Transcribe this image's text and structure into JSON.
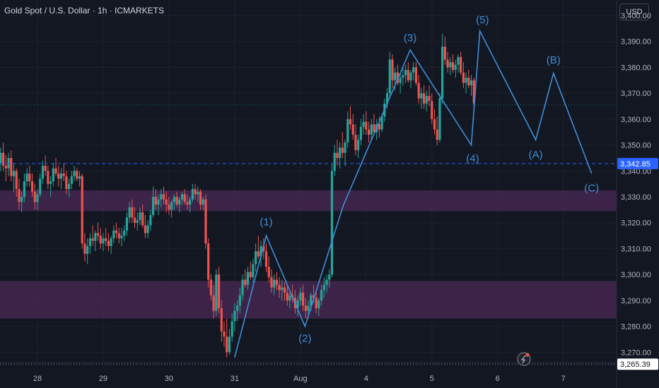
{
  "header": {
    "title": "Gold Spot / U.S. Dollar · 1h · ICMARKETS",
    "currency": "USD"
  },
  "colors": {
    "bg": "#131722",
    "up": "#26a69a",
    "down": "#ef5350",
    "wave": "#3f8ed8",
    "zone": "#4a2a55",
    "price_line": "#2962ff",
    "last_price_bg": "#2962ff",
    "current_bg": "#ffffff"
  },
  "chart_data": {
    "type": "candlestick",
    "title": "Gold Spot / U.S. Dollar · 1h · ICMARKETS",
    "x_tick_labels": [
      "28",
      "29",
      "30",
      "31",
      "Aug",
      "4",
      "5",
      "6",
      "7"
    ],
    "x_tick_positions": [
      0,
      1,
      2,
      3,
      4,
      5,
      6,
      7,
      8
    ],
    "y_ticks": [
      3270,
      3280,
      3290,
      3300,
      3310,
      3320,
      3330,
      3340,
      3350,
      3360,
      3370,
      3380,
      3390,
      3400
    ],
    "y_tick_labels": [
      "3,270.00",
      "3,280.00",
      "3,290.00",
      "3,300.00",
      "3,310.00",
      "3,320.00",
      "3,330.00",
      "3,340.00",
      "3,350.00",
      "3,360.00",
      "3,370.00",
      "3,380.00",
      "3,390.00",
      "3,400.00"
    ],
    "ylim": [
      3266,
      3406
    ],
    "xlim": [
      -0.57,
      8.81
    ],
    "grid": true,
    "price_lines": [
      {
        "value": 3342.85,
        "label": "3,342.85",
        "style": "dashed"
      },
      {
        "value": 3365.5,
        "style": "dotted"
      },
      {
        "value": 3265.39,
        "label": "3,265.39",
        "style": "dotted"
      }
    ],
    "zones": [
      {
        "from": 3324.5,
        "to": 3332.5
      },
      {
        "from": 3283,
        "to": 3297.5
      }
    ],
    "wave": {
      "points": [
        [
          3.0,
          3268
        ],
        [
          3.48,
          3315
        ],
        [
          4.07,
          3280
        ],
        [
          4.65,
          3326.5
        ],
        [
          5.67,
          3386.7
        ],
        [
          6.6,
          3350
        ],
        [
          6.73,
          3394
        ],
        [
          7.58,
          3352
        ],
        [
          7.85,
          3377.7
        ],
        [
          8.43,
          3339
        ]
      ],
      "labels": [
        {
          "text": "(1)",
          "x": 3.48,
          "y": 3319
        },
        {
          "text": "(2)",
          "x": 4.07,
          "y": 3274
        },
        {
          "text": "(3)",
          "x": 5.67,
          "y": 3390
        },
        {
          "text": "(4)",
          "x": 6.62,
          "y": 3343.5
        },
        {
          "text": "(5)",
          "x": 6.77,
          "y": 3397
        },
        {
          "text": "(A)",
          "x": 7.58,
          "y": 3345
        },
        {
          "text": "(B)",
          "x": 7.85,
          "y": 3381.5
        },
        {
          "text": "(C)",
          "x": 8.43,
          "y": 3332
        }
      ]
    },
    "ohlc": [
      [
        -0.56,
        3343,
        3349,
        3340,
        3347
      ],
      [
        -0.52,
        3347,
        3351,
        3340,
        3342
      ],
      [
        -0.48,
        3342,
        3346,
        3336,
        3341
      ],
      [
        -0.44,
        3341,
        3347,
        3338,
        3345
      ],
      [
        -0.4,
        3345,
        3348,
        3336,
        3338
      ],
      [
        -0.36,
        3338,
        3343,
        3332,
        3340
      ],
      [
        -0.32,
        3340,
        3341,
        3330,
        3333
      ],
      [
        -0.28,
        3333,
        3337,
        3325,
        3328
      ],
      [
        -0.24,
        3328,
        3332,
        3324,
        3330
      ],
      [
        -0.2,
        3330,
        3339,
        3328,
        3336
      ],
      [
        -0.16,
        3336,
        3341,
        3334,
        3339
      ],
      [
        -0.12,
        3339,
        3342,
        3334,
        3336
      ],
      [
        -0.08,
        3336,
        3339,
        3330,
        3332
      ],
      [
        -0.04,
        3332,
        3335,
        3325,
        3328
      ],
      [
        0.0,
        3328,
        3333,
        3325,
        3331
      ],
      [
        0.04,
        3331,
        3339,
        3330,
        3337
      ],
      [
        0.08,
        3337,
        3344,
        3335,
        3342
      ],
      [
        0.12,
        3342,
        3346,
        3338,
        3340
      ],
      [
        0.16,
        3340,
        3342,
        3333,
        3335
      ],
      [
        0.2,
        3335,
        3338,
        3330,
        3336
      ],
      [
        0.24,
        3336,
        3343,
        3334,
        3341
      ],
      [
        0.28,
        3341,
        3345,
        3338,
        3339
      ],
      [
        0.32,
        3339,
        3342,
        3334,
        3337
      ],
      [
        0.36,
        3337,
        3341,
        3333,
        3339
      ],
      [
        0.4,
        3339,
        3343,
        3336,
        3338
      ],
      [
        0.44,
        3338,
        3340,
        3331,
        3333
      ],
      [
        0.48,
        3333,
        3337,
        3330,
        3335
      ],
      [
        0.52,
        3335,
        3340,
        3333,
        3338
      ],
      [
        0.56,
        3338,
        3342,
        3336,
        3340
      ],
      [
        0.6,
        3340,
        3341,
        3336,
        3337
      ],
      [
        0.64,
        3337,
        3340,
        3334,
        3338
      ],
      [
        0.68,
        3338,
        3339,
        3310,
        3312
      ],
      [
        0.72,
        3312,
        3316,
        3305,
        3308
      ],
      [
        0.76,
        3308,
        3314,
        3304,
        3311
      ],
      [
        0.8,
        3311,
        3316,
        3308,
        3314
      ],
      [
        0.84,
        3314,
        3319,
        3311,
        3313
      ],
      [
        0.88,
        3313,
        3317,
        3309,
        3316
      ],
      [
        0.92,
        3316,
        3320,
        3313,
        3315
      ],
      [
        0.96,
        3315,
        3318,
        3310,
        3312
      ],
      [
        1.0,
        3312,
        3316,
        3309,
        3314
      ],
      [
        1.04,
        3314,
        3318,
        3311,
        3313
      ],
      [
        1.08,
        3313,
        3316,
        3309,
        3311
      ],
      [
        1.12,
        3311,
        3315,
        3308,
        3314
      ],
      [
        1.16,
        3314,
        3319,
        3312,
        3317
      ],
      [
        1.2,
        3317,
        3320,
        3314,
        3316
      ],
      [
        1.24,
        3316,
        3318,
        3312,
        3314
      ],
      [
        1.28,
        3314,
        3318,
        3311,
        3315
      ],
      [
        1.32,
        3315,
        3319,
        3313,
        3317
      ],
      [
        1.36,
        3317,
        3324,
        3315,
        3322
      ],
      [
        1.4,
        3322,
        3328,
        3320,
        3326
      ],
      [
        1.44,
        3326,
        3329,
        3320,
        3322
      ],
      [
        1.48,
        3322,
        3326,
        3318,
        3320
      ],
      [
        1.52,
        3320,
        3324,
        3317,
        3321
      ],
      [
        1.56,
        3321,
        3326,
        3319,
        3324
      ],
      [
        1.6,
        3324,
        3327,
        3318,
        3319
      ],
      [
        1.64,
        3319,
        3323,
        3314,
        3316
      ],
      [
        1.68,
        3316,
        3321,
        3314,
        3319
      ],
      [
        1.72,
        3319,
        3325,
        3317,
        3323
      ],
      [
        1.76,
        3323,
        3334,
        3322,
        3330
      ],
      [
        1.8,
        3330,
        3333,
        3325,
        3327
      ],
      [
        1.84,
        3327,
        3331,
        3323,
        3329
      ],
      [
        1.88,
        3329,
        3333,
        3326,
        3331
      ],
      [
        1.92,
        3331,
        3334,
        3327,
        3329
      ],
      [
        1.96,
        3329,
        3332,
        3324,
        3327
      ],
      [
        2.0,
        3327,
        3330,
        3323,
        3325
      ],
      [
        2.04,
        3325,
        3329,
        3322,
        3328
      ],
      [
        2.08,
        3328,
        3331,
        3325,
        3330
      ],
      [
        2.12,
        3330,
        3332,
        3326,
        3327
      ],
      [
        2.16,
        3327,
        3330,
        3324,
        3329
      ],
      [
        2.2,
        3329,
        3332,
        3327,
        3331
      ],
      [
        2.24,
        3331,
        3333,
        3327,
        3328
      ],
      [
        2.28,
        3328,
        3331,
        3325,
        3327
      ],
      [
        2.32,
        3327,
        3330,
        3324,
        3329
      ],
      [
        2.36,
        3329,
        3335,
        3328,
        3333
      ],
      [
        2.4,
        3333,
        3335,
        3329,
        3331
      ],
      [
        2.44,
        3331,
        3334,
        3328,
        3332
      ],
      [
        2.48,
        3332,
        3333,
        3325,
        3327
      ],
      [
        2.52,
        3327,
        3330,
        3325,
        3329
      ],
      [
        2.56,
        3329,
        3331,
        3310,
        3312
      ],
      [
        2.6,
        3312,
        3314,
        3295,
        3298
      ],
      [
        2.64,
        3298,
        3300,
        3290,
        3292
      ],
      [
        2.68,
        3292,
        3296,
        3283,
        3286
      ],
      [
        2.72,
        3286,
        3302,
        3284,
        3300
      ],
      [
        2.76,
        3300,
        3303,
        3285,
        3287
      ],
      [
        2.8,
        3287,
        3290,
        3274,
        3278
      ],
      [
        2.84,
        3278,
        3282,
        3272,
        3276
      ],
      [
        2.88,
        3276,
        3283,
        3268,
        3270
      ],
      [
        2.92,
        3270,
        3279,
        3269,
        3276
      ],
      [
        2.96,
        3276,
        3285,
        3274,
        3282
      ],
      [
        3.0,
        3282,
        3289,
        3278,
        3286
      ],
      [
        3.04,
        3286,
        3290,
        3282,
        3288
      ],
      [
        3.08,
        3288,
        3295,
        3285,
        3292
      ],
      [
        3.12,
        3292,
        3300,
        3290,
        3298
      ],
      [
        3.16,
        3298,
        3302,
        3295,
        3296
      ],
      [
        3.2,
        3296,
        3303,
        3294,
        3301
      ],
      [
        3.24,
        3301,
        3305,
        3298,
        3299
      ],
      [
        3.28,
        3299,
        3306,
        3297,
        3304
      ],
      [
        3.32,
        3304,
        3312,
        3301,
        3309
      ],
      [
        3.36,
        3309,
        3315,
        3306,
        3307
      ],
      [
        3.4,
        3307,
        3313,
        3303,
        3311
      ],
      [
        3.44,
        3311,
        3314,
        3306,
        3309
      ],
      [
        3.48,
        3309,
        3312,
        3301,
        3303
      ],
      [
        3.52,
        3303,
        3307,
        3297,
        3299
      ],
      [
        3.56,
        3299,
        3302,
        3293,
        3295
      ],
      [
        3.6,
        3295,
        3300,
        3292,
        3298
      ],
      [
        3.64,
        3298,
        3301,
        3294,
        3296
      ],
      [
        3.68,
        3296,
        3299,
        3291,
        3294
      ],
      [
        3.72,
        3294,
        3298,
        3290,
        3295
      ],
      [
        3.76,
        3295,
        3297,
        3290,
        3293
      ],
      [
        3.8,
        3293,
        3296,
        3288,
        3290
      ],
      [
        3.84,
        3290,
        3294,
        3287,
        3292
      ],
      [
        3.88,
        3292,
        3296,
        3289,
        3291
      ],
      [
        3.92,
        3291,
        3294,
        3285,
        3287
      ],
      [
        3.96,
        3287,
        3292,
        3284,
        3290
      ],
      [
        4.0,
        3290,
        3295,
        3288,
        3293
      ],
      [
        4.04,
        3293,
        3296,
        3286,
        3288
      ],
      [
        4.08,
        3288,
        3291,
        3283,
        3286
      ],
      [
        4.12,
        3286,
        3290,
        3283,
        3288
      ],
      [
        4.16,
        3288,
        3293,
        3286,
        3292
      ],
      [
        4.2,
        3292,
        3296,
        3289,
        3291
      ],
      [
        4.24,
        3291,
        3294,
        3285,
        3287
      ],
      [
        4.28,
        3287,
        3291,
        3284,
        3290
      ],
      [
        4.32,
        3290,
        3296,
        3288,
        3294
      ],
      [
        4.36,
        3294,
        3299,
        3291,
        3296
      ],
      [
        4.4,
        3296,
        3300,
        3293,
        3298
      ],
      [
        4.44,
        3298,
        3302,
        3295,
        3300
      ],
      [
        4.48,
        3300,
        3343,
        3299,
        3340
      ],
      [
        4.52,
        3340,
        3350,
        3338,
        3347
      ],
      [
        4.56,
        3347,
        3352,
        3342,
        3345
      ],
      [
        4.6,
        3345,
        3351,
        3341,
        3349
      ],
      [
        4.64,
        3349,
        3355,
        3345,
        3347
      ],
      [
        4.68,
        3347,
        3352,
        3342,
        3351
      ],
      [
        4.72,
        3351,
        3363,
        3349,
        3360
      ],
      [
        4.76,
        3360,
        3365,
        3356,
        3358
      ],
      [
        4.8,
        3358,
        3362,
        3352,
        3354
      ],
      [
        4.84,
        3354,
        3358,
        3346,
        3348
      ],
      [
        4.88,
        3348,
        3354,
        3345,
        3352
      ],
      [
        4.92,
        3352,
        3360,
        3350,
        3357
      ],
      [
        4.96,
        3357,
        3362,
        3354,
        3359
      ],
      [
        5.0,
        3359,
        3363,
        3354,
        3356
      ],
      [
        5.04,
        3356,
        3359,
        3351,
        3354
      ],
      [
        5.08,
        3354,
        3360,
        3352,
        3358
      ],
      [
        5.12,
        3358,
        3362,
        3354,
        3355
      ],
      [
        5.16,
        3355,
        3360,
        3352,
        3358
      ],
      [
        5.2,
        3358,
        3361,
        3353,
        3356
      ],
      [
        5.24,
        3356,
        3362,
        3355,
        3361
      ],
      [
        5.28,
        3361,
        3368,
        3359,
        3366
      ],
      [
        5.32,
        3366,
        3372,
        3364,
        3370
      ],
      [
        5.36,
        3370,
        3386,
        3368,
        3383
      ],
      [
        5.4,
        3383,
        3385,
        3372,
        3375
      ],
      [
        5.44,
        3375,
        3380,
        3371,
        3378
      ],
      [
        5.48,
        3378,
        3381,
        3373,
        3374
      ],
      [
        5.52,
        3374,
        3378,
        3370,
        3376
      ],
      [
        5.56,
        3376,
        3380,
        3373,
        3377
      ],
      [
        5.6,
        3377,
        3381,
        3374,
        3379
      ],
      [
        5.64,
        3379,
        3382,
        3374,
        3375
      ],
      [
        5.68,
        3375,
        3379,
        3372,
        3378
      ],
      [
        5.72,
        3378,
        3382,
        3375,
        3380
      ],
      [
        5.76,
        3380,
        3382,
        3373,
        3374
      ],
      [
        5.8,
        3374,
        3377,
        3366,
        3368
      ],
      [
        5.84,
        3368,
        3372,
        3364,
        3370
      ],
      [
        5.88,
        3370,
        3373,
        3364,
        3366
      ],
      [
        5.92,
        3366,
        3371,
        3363,
        3369
      ],
      [
        5.96,
        3369,
        3373,
        3365,
        3367
      ],
      [
        6.0,
        3367,
        3370,
        3358,
        3360
      ],
      [
        6.04,
        3360,
        3364,
        3354,
        3356
      ],
      [
        6.08,
        3356,
        3361,
        3350,
        3352
      ],
      [
        6.12,
        3352,
        3370,
        3351,
        3368
      ],
      [
        6.16,
        3368,
        3393,
        3366,
        3388
      ],
      [
        6.2,
        3388,
        3392,
        3381,
        3383
      ],
      [
        6.24,
        3383,
        3386,
        3378,
        3380
      ],
      [
        6.28,
        3380,
        3384,
        3377,
        3382
      ],
      [
        6.32,
        3382,
        3385,
        3378,
        3379
      ],
      [
        6.36,
        3379,
        3383,
        3376,
        3381
      ],
      [
        6.4,
        3381,
        3385,
        3378,
        3384
      ],
      [
        6.44,
        3384,
        3386,
        3377,
        3378
      ],
      [
        6.48,
        3378,
        3382,
        3372,
        3374
      ],
      [
        6.52,
        3374,
        3378,
        3370,
        3376
      ],
      [
        6.56,
        3376,
        3379,
        3372,
        3373
      ],
      [
        6.6,
        3373,
        3377,
        3369,
        3375
      ],
      [
        6.64,
        3375,
        3376,
        3364,
        3366
      ]
    ]
  },
  "ui": {
    "alert_icon": "alert-clock-icon"
  }
}
